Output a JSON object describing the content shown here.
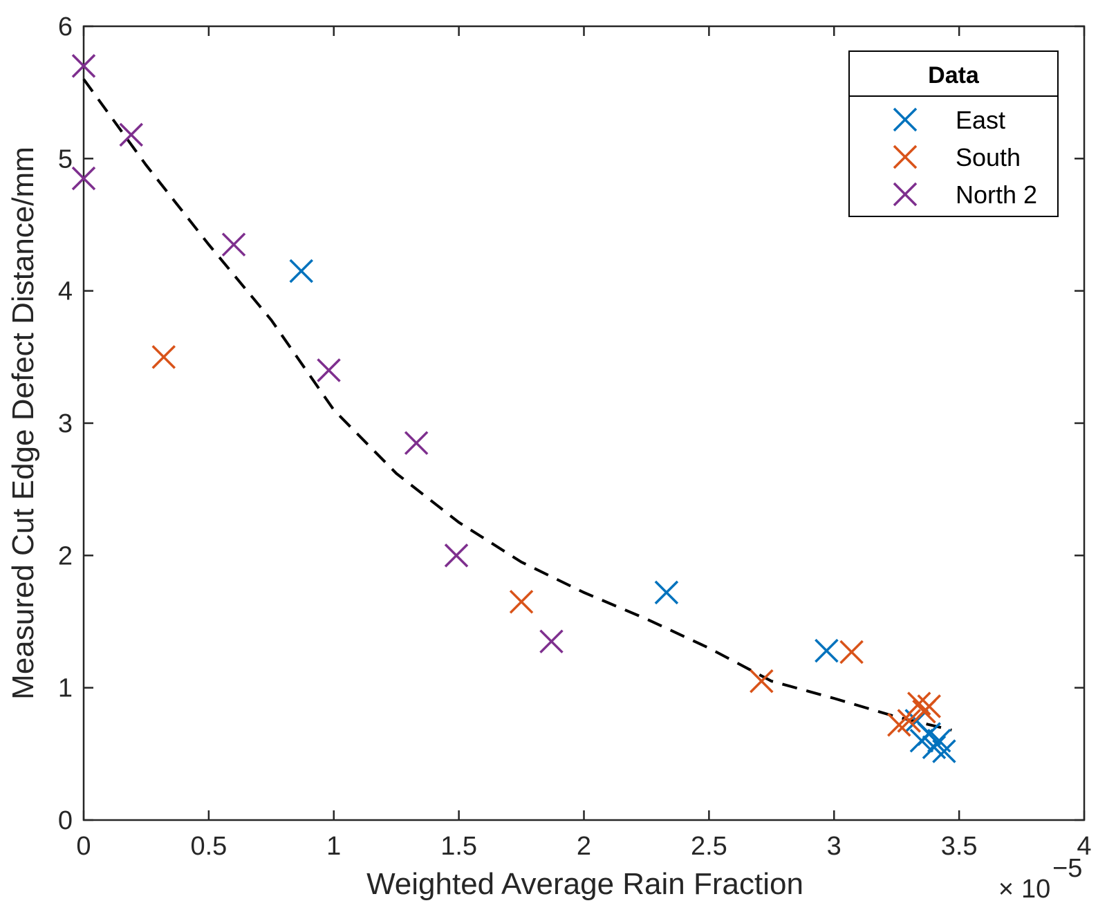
{
  "chart_data": {
    "type": "scatter",
    "title": "",
    "xlabel": "Weighted Average Rain Fraction",
    "ylabel": "Measured Cut Edge Defect Distance/mm",
    "x_multiplier_prefix": "×",
    "x_multiplier_base": "10",
    "x_multiplier_exp": "−5",
    "xlim": [
      0,
      4
    ],
    "ylim": [
      0,
      6
    ],
    "xticks": [
      0,
      0.5,
      1,
      1.5,
      2,
      2.5,
      3,
      3.5,
      4
    ],
    "xtick_labels": [
      "0",
      "0.5",
      "1",
      "1.5",
      "2",
      "2.5",
      "3",
      "3.5",
      "4"
    ],
    "yticks": [
      0,
      1,
      2,
      3,
      4,
      5,
      6
    ],
    "ytick_labels": [
      "0",
      "1",
      "2",
      "3",
      "4",
      "5",
      "6"
    ],
    "legend": {
      "title": "Data",
      "placement": "top-right",
      "entries": [
        "East",
        "South",
        "North 2"
      ]
    },
    "series": [
      {
        "name": "East",
        "color": "#0072BD",
        "marker": "x",
        "x": [
          0.87,
          2.33,
          2.97,
          3.33,
          3.35,
          3.38,
          3.4,
          3.42,
          3.44
        ],
        "y": [
          4.15,
          1.72,
          1.28,
          0.75,
          0.6,
          0.65,
          0.55,
          0.6,
          0.52
        ]
      },
      {
        "name": "South",
        "color": "#D95319",
        "marker": "x",
        "x": [
          0.32,
          1.75,
          2.71,
          3.07,
          3.26,
          3.3,
          3.34,
          3.36,
          3.38
        ],
        "y": [
          3.5,
          1.65,
          1.05,
          1.27,
          0.72,
          0.75,
          0.88,
          0.82,
          0.86
        ]
      },
      {
        "name": "North 2",
        "color": "#7E2F8E",
        "marker": "x",
        "x": [
          0.0,
          0.0,
          0.19,
          0.6,
          0.98,
          1.33,
          1.49,
          1.87
        ],
        "y": [
          5.7,
          4.85,
          5.18,
          4.35,
          3.4,
          2.85,
          2.0,
          1.35
        ]
      }
    ],
    "fit_line": {
      "style": "dashed",
      "color": "#000000",
      "x": [
        0.0,
        0.25,
        0.5,
        0.75,
        1.0,
        1.25,
        1.5,
        1.75,
        2.0,
        2.25,
        2.5,
        2.75,
        3.0,
        3.25,
        3.47
      ],
      "y": [
        5.6,
        4.95,
        4.35,
        3.78,
        3.1,
        2.62,
        2.25,
        1.95,
        1.72,
        1.52,
        1.3,
        1.05,
        0.92,
        0.78,
        0.68
      ]
    }
  }
}
